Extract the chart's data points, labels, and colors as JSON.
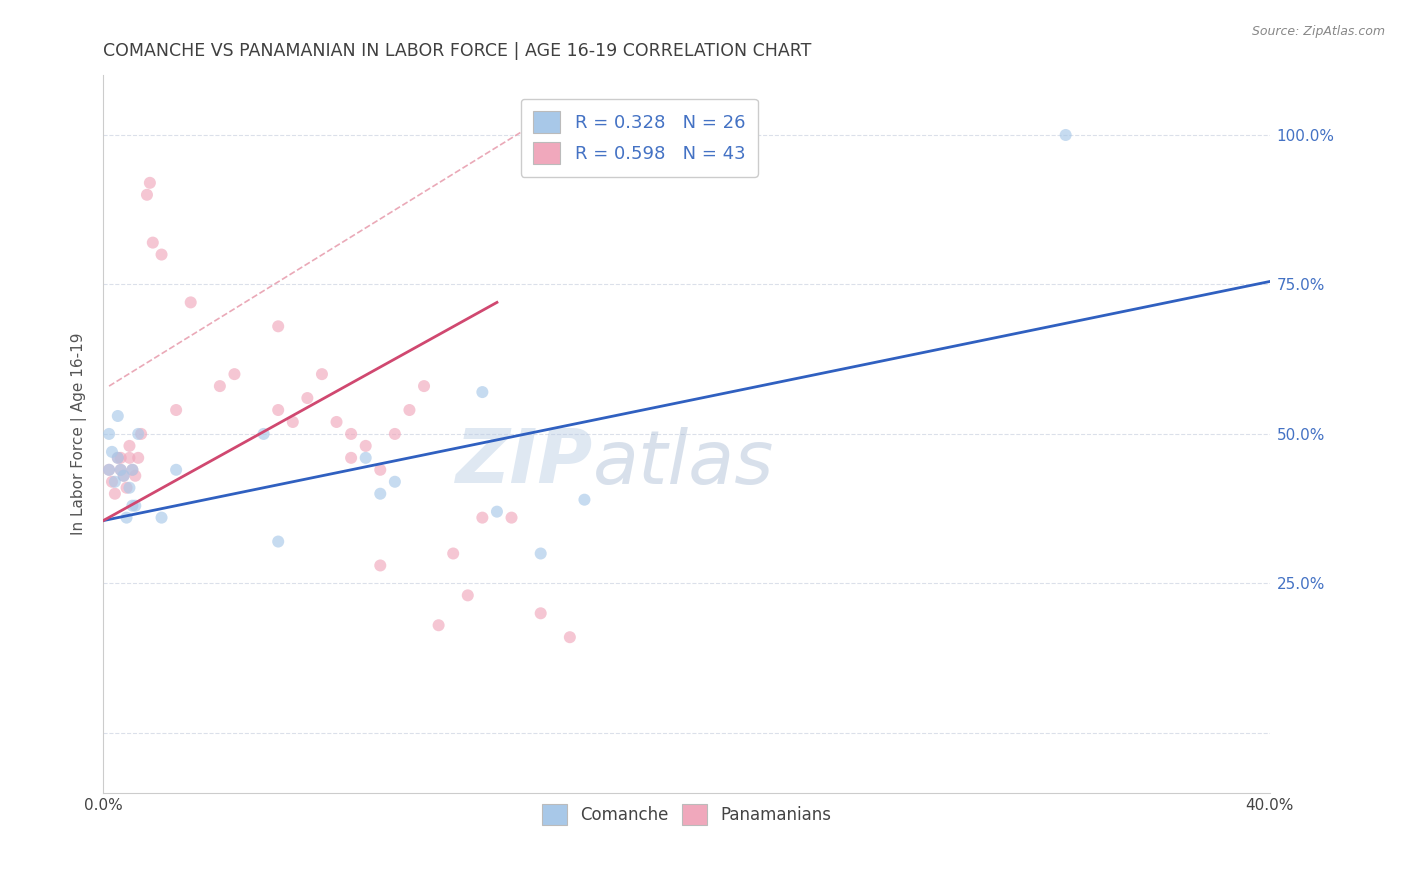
{
  "title": "COMANCHE VS PANAMANIAN IN LABOR FORCE | AGE 16-19 CORRELATION CHART",
  "source": "Source: ZipAtlas.com",
  "ylabel": "In Labor Force | Age 16-19",
  "xlim": [
    0.0,
    0.4
  ],
  "ylim": [
    -0.1,
    1.1
  ],
  "legend_R1": "R = 0.328",
  "legend_N1": "N = 26",
  "legend_R2": "R = 0.598",
  "legend_N2": "N = 43",
  "watermark_zip": "ZIP",
  "watermark_atlas": "atlas",
  "comanche_color": "#a8c8e8",
  "panamanian_color": "#f0a8bc",
  "blue_line_color": "#3060c0",
  "pink_line_color": "#d04870",
  "dashed_line_color": "#e8a0b0",
  "comanche_x": [
    0.002,
    0.002,
    0.003,
    0.004,
    0.005,
    0.005,
    0.006,
    0.007,
    0.008,
    0.009,
    0.01,
    0.01,
    0.011,
    0.012,
    0.02,
    0.025,
    0.055,
    0.06,
    0.09,
    0.095,
    0.1,
    0.13,
    0.135,
    0.15,
    0.165,
    0.33
  ],
  "comanche_y": [
    0.44,
    0.5,
    0.47,
    0.42,
    0.53,
    0.46,
    0.44,
    0.43,
    0.36,
    0.41,
    0.38,
    0.44,
    0.38,
    0.5,
    0.36,
    0.44,
    0.5,
    0.32,
    0.46,
    0.4,
    0.42,
    0.57,
    0.37,
    0.3,
    0.39,
    1.0
  ],
  "panamanian_x": [
    0.002,
    0.003,
    0.004,
    0.005,
    0.006,
    0.006,
    0.007,
    0.008,
    0.009,
    0.009,
    0.01,
    0.011,
    0.012,
    0.013,
    0.015,
    0.016,
    0.017,
    0.02,
    0.025,
    0.03,
    0.04,
    0.045,
    0.06,
    0.065,
    0.07,
    0.075,
    0.08,
    0.085,
    0.09,
    0.095,
    0.105,
    0.11,
    0.12,
    0.125,
    0.13,
    0.14,
    0.15,
    0.16,
    0.06,
    0.085,
    0.095,
    0.1,
    0.115
  ],
  "panamanian_y": [
    0.44,
    0.42,
    0.4,
    0.46,
    0.44,
    0.46,
    0.43,
    0.41,
    0.46,
    0.48,
    0.44,
    0.43,
    0.46,
    0.5,
    0.9,
    0.92,
    0.82,
    0.8,
    0.54,
    0.72,
    0.58,
    0.6,
    0.54,
    0.52,
    0.56,
    0.6,
    0.52,
    0.5,
    0.48,
    0.44,
    0.54,
    0.58,
    0.3,
    0.23,
    0.36,
    0.36,
    0.2,
    0.16,
    0.68,
    0.46,
    0.28,
    0.5,
    0.18
  ],
  "blue_line_x": [
    0.0,
    0.4
  ],
  "blue_line_y": [
    0.355,
    0.755
  ],
  "pink_line_x": [
    0.0,
    0.135
  ],
  "pink_line_y": [
    0.355,
    0.72
  ],
  "dashed_line_x": [
    0.002,
    0.145
  ],
  "dashed_line_y": [
    0.58,
    1.01
  ],
  "marker_size": 75,
  "alpha": 0.65,
  "grid_color": "#d8dde8",
  "background_color": "#ffffff",
  "title_color": "#404040",
  "axis_label_color": "#555555",
  "ytick_label_color": "#4472c4",
  "legend_color": "#4472c4"
}
